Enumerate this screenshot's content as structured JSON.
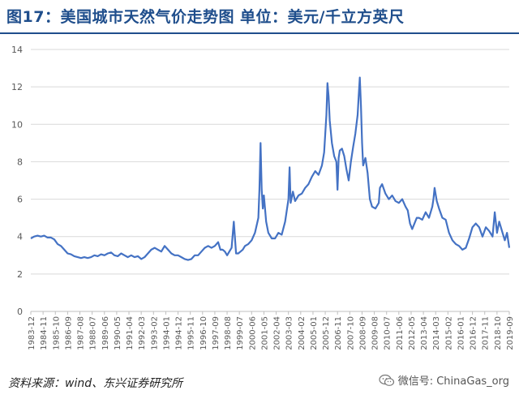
{
  "header": {
    "title": "图17：美国城市天然气价走势图 单位：美元/千立方英尺"
  },
  "footer": {
    "source": "资料来源：wind、东兴证券研究所",
    "wechat": "微信号: ChinaGas_org"
  },
  "colors": {
    "line": "#4472c4",
    "title": "#1f4e8c",
    "grid": "#d9d9d9"
  },
  "chart_data": {
    "type": "line",
    "title": "",
    "xlabel": "",
    "ylabel": "",
    "ylim": [
      0,
      14
    ],
    "yticks": [
      0,
      2,
      4,
      6,
      8,
      10,
      12,
      14
    ],
    "grid": true,
    "xrange": [
      "1983-12",
      "2019-09"
    ],
    "xtick_labels": [
      "1983-12",
      "1984-11",
      "1985-10",
      "1986-09",
      "1987-08",
      "1988-07",
      "1989-06",
      "1990-05",
      "1991-04",
      "1992-03",
      "1993-02",
      "1994-01",
      "1994-12",
      "1995-11",
      "1996-10",
      "1997-09",
      "1998-08",
      "1999-07",
      "2000-06",
      "2001-05",
      "2002-04",
      "2003-03",
      "2004-02",
      "2005-01",
      "2005-12",
      "2006-11",
      "2007-10",
      "2008-09",
      "2009-08",
      "2010-07",
      "2011-06",
      "2012-05",
      "2013-04",
      "2014-03",
      "2015-02",
      "2016-01",
      "2016-12",
      "2017-11",
      "2018-10",
      "2019-09"
    ],
    "series": [
      {
        "values": [
          [
            "1983-12",
            3.9
          ],
          [
            "1984-03",
            4.0
          ],
          [
            "1984-06",
            4.05
          ],
          [
            "1984-09",
            4.0
          ],
          [
            "1984-12",
            4.05
          ],
          [
            "1985-03",
            3.95
          ],
          [
            "1985-06",
            3.95
          ],
          [
            "1985-09",
            3.85
          ],
          [
            "1985-12",
            3.6
          ],
          [
            "1986-03",
            3.5
          ],
          [
            "1986-06",
            3.3
          ],
          [
            "1986-09",
            3.1
          ],
          [
            "1986-12",
            3.05
          ],
          [
            "1987-03",
            2.95
          ],
          [
            "1987-06",
            2.9
          ],
          [
            "1987-09",
            2.85
          ],
          [
            "1987-12",
            2.9
          ],
          [
            "1988-03",
            2.85
          ],
          [
            "1988-06",
            2.9
          ],
          [
            "1988-09",
            3.0
          ],
          [
            "1988-12",
            2.95
          ],
          [
            "1989-03",
            3.05
          ],
          [
            "1989-06",
            3.0
          ],
          [
            "1989-09",
            3.1
          ],
          [
            "1989-12",
            3.15
          ],
          [
            "1990-03",
            3.0
          ],
          [
            "1990-06",
            2.95
          ],
          [
            "1990-09",
            3.1
          ],
          [
            "1990-12",
            3.0
          ],
          [
            "1991-03",
            2.9
          ],
          [
            "1991-06",
            3.0
          ],
          [
            "1991-09",
            2.9
          ],
          [
            "1991-12",
            2.95
          ],
          [
            "1992-03",
            2.8
          ],
          [
            "1992-06",
            2.9
          ],
          [
            "1992-09",
            3.1
          ],
          [
            "1992-12",
            3.3
          ],
          [
            "1993-03",
            3.4
          ],
          [
            "1993-06",
            3.3
          ],
          [
            "1993-09",
            3.2
          ],
          [
            "1993-12",
            3.5
          ],
          [
            "1994-03",
            3.3
          ],
          [
            "1994-06",
            3.1
          ],
          [
            "1994-09",
            3.0
          ],
          [
            "1994-12",
            3.0
          ],
          [
            "1995-03",
            2.9
          ],
          [
            "1995-06",
            2.8
          ],
          [
            "1995-09",
            2.75
          ],
          [
            "1995-12",
            2.8
          ],
          [
            "1996-03",
            3.0
          ],
          [
            "1996-06",
            3.0
          ],
          [
            "1996-09",
            3.2
          ],
          [
            "1996-12",
            3.4
          ],
          [
            "1997-03",
            3.5
          ],
          [
            "1997-06",
            3.4
          ],
          [
            "1997-09",
            3.5
          ],
          [
            "1997-12",
            3.7
          ],
          [
            "1998-02",
            3.3
          ],
          [
            "1998-04",
            3.3
          ],
          [
            "1998-06",
            3.2
          ],
          [
            "1998-08",
            3.0
          ],
          [
            "1998-10",
            3.2
          ],
          [
            "1998-12",
            3.4
          ],
          [
            "1999-02",
            4.8
          ],
          [
            "1999-04",
            3.1
          ],
          [
            "1999-06",
            3.1
          ],
          [
            "1999-08",
            3.2
          ],
          [
            "1999-10",
            3.3
          ],
          [
            "1999-12",
            3.5
          ],
          [
            "2000-03",
            3.6
          ],
          [
            "2000-06",
            3.8
          ],
          [
            "2000-09",
            4.2
          ],
          [
            "2000-12",
            5.0
          ],
          [
            "2001-01",
            6.5
          ],
          [
            "2001-02",
            9.0
          ],
          [
            "2001-03",
            6.5
          ],
          [
            "2001-04",
            5.5
          ],
          [
            "2001-05",
            6.2
          ],
          [
            "2001-07",
            4.8
          ],
          [
            "2001-09",
            4.2
          ],
          [
            "2001-12",
            3.9
          ],
          [
            "2002-03",
            3.9
          ],
          [
            "2002-06",
            4.2
          ],
          [
            "2002-09",
            4.1
          ],
          [
            "2002-12",
            4.8
          ],
          [
            "2003-03",
            6.0
          ],
          [
            "2003-04",
            7.7
          ],
          [
            "2003-05",
            5.8
          ],
          [
            "2003-07",
            6.4
          ],
          [
            "2003-09",
            5.9
          ],
          [
            "2003-12",
            6.2
          ],
          [
            "2004-03",
            6.3
          ],
          [
            "2004-06",
            6.6
          ],
          [
            "2004-09",
            6.8
          ],
          [
            "2004-12",
            7.2
          ],
          [
            "2005-03",
            7.5
          ],
          [
            "2005-06",
            7.3
          ],
          [
            "2005-09",
            7.8
          ],
          [
            "2005-11",
            8.5
          ],
          [
            "2006-01",
            10.5
          ],
          [
            "2006-02",
            12.2
          ],
          [
            "2006-03",
            11.5
          ],
          [
            "2006-04",
            10.2
          ],
          [
            "2006-06",
            9.0
          ],
          [
            "2006-08",
            8.3
          ],
          [
            "2006-10",
            8.0
          ],
          [
            "2006-11",
            6.5
          ],
          [
            "2006-12",
            8.2
          ],
          [
            "2007-01",
            8.6
          ],
          [
            "2007-03",
            8.7
          ],
          [
            "2007-05",
            8.3
          ],
          [
            "2007-07",
            7.6
          ],
          [
            "2007-09",
            7.0
          ],
          [
            "2007-11",
            8.0
          ],
          [
            "2008-01",
            8.8
          ],
          [
            "2008-03",
            9.5
          ],
          [
            "2008-05",
            10.5
          ],
          [
            "2008-06",
            11.5
          ],
          [
            "2008-07",
            12.5
          ],
          [
            "2008-08",
            11.0
          ],
          [
            "2008-09",
            9.0
          ],
          [
            "2008-10",
            7.8
          ],
          [
            "2008-12",
            8.2
          ],
          [
            "2009-02",
            7.4
          ],
          [
            "2009-04",
            6.0
          ],
          [
            "2009-06",
            5.6
          ],
          [
            "2009-09",
            5.5
          ],
          [
            "2009-12",
            5.8
          ],
          [
            "2010-01",
            6.6
          ],
          [
            "2010-03",
            6.8
          ],
          [
            "2010-06",
            6.3
          ],
          [
            "2010-09",
            6.0
          ],
          [
            "2010-12",
            6.2
          ],
          [
            "2011-03",
            5.9
          ],
          [
            "2011-06",
            5.8
          ],
          [
            "2011-09",
            6.0
          ],
          [
            "2011-12",
            5.6
          ],
          [
            "2012-02",
            5.4
          ],
          [
            "2012-04",
            4.7
          ],
          [
            "2012-06",
            4.4
          ],
          [
            "2012-08",
            4.7
          ],
          [
            "2012-10",
            5.0
          ],
          [
            "2012-12",
            5.0
          ],
          [
            "2013-03",
            4.9
          ],
          [
            "2013-06",
            5.3
          ],
          [
            "2013-09",
            5.0
          ],
          [
            "2013-12",
            5.6
          ],
          [
            "2014-01",
            6.0
          ],
          [
            "2014-02",
            6.6
          ],
          [
            "2014-04",
            5.9
          ],
          [
            "2014-06",
            5.5
          ],
          [
            "2014-09",
            5.0
          ],
          [
            "2014-12",
            4.9
          ],
          [
            "2015-03",
            4.2
          ],
          [
            "2015-06",
            3.8
          ],
          [
            "2015-09",
            3.6
          ],
          [
            "2015-12",
            3.5
          ],
          [
            "2016-03",
            3.3
          ],
          [
            "2016-06",
            3.4
          ],
          [
            "2016-09",
            3.9
          ],
          [
            "2016-12",
            4.5
          ],
          [
            "2017-03",
            4.7
          ],
          [
            "2017-06",
            4.5
          ],
          [
            "2017-09",
            4.0
          ],
          [
            "2017-12",
            4.5
          ],
          [
            "2018-03",
            4.3
          ],
          [
            "2018-06",
            4.0
          ],
          [
            "2018-08",
            5.3
          ],
          [
            "2018-10",
            4.2
          ],
          [
            "2018-12",
            4.8
          ],
          [
            "2019-03",
            4.2
          ],
          [
            "2019-05",
            3.8
          ],
          [
            "2019-07",
            4.2
          ],
          [
            "2019-09",
            3.4
          ]
        ]
      }
    ]
  }
}
